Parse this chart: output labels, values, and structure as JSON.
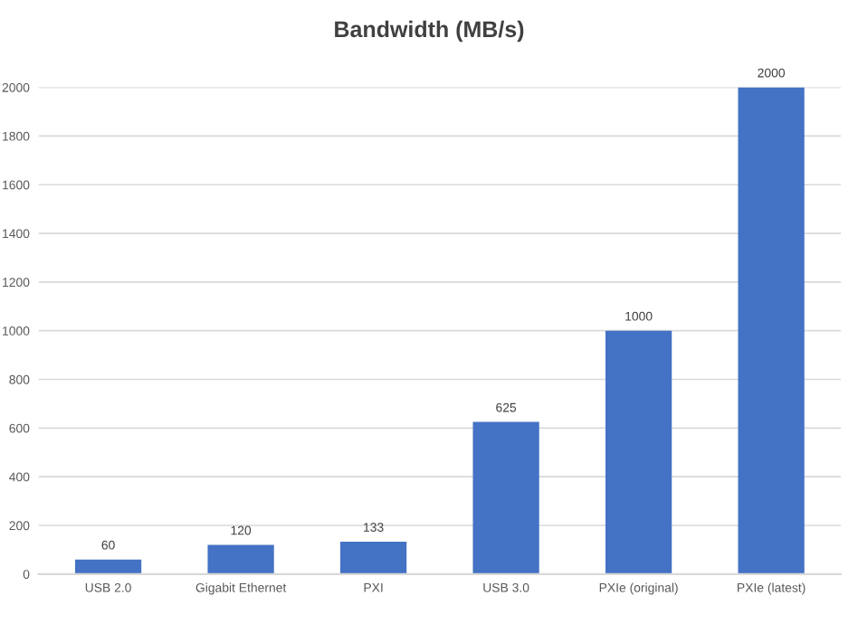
{
  "chart_data": {
    "type": "bar",
    "title": "Bandwidth (MB/s)",
    "categories": [
      "USB 2.0",
      "Gigabit Ethernet",
      "PXI",
      "USB 3.0",
      "PXIe (original)",
      "PXIe (latest)"
    ],
    "values": [
      60,
      120,
      133,
      625,
      1000,
      2000
    ],
    "color": "#4472c4",
    "ylim": [
      0,
      2000
    ],
    "yticks": [
      0,
      200,
      400,
      600,
      800,
      1000,
      1200,
      1400,
      1600,
      1800,
      2000
    ],
    "grid": "y",
    "data_labels": true
  }
}
